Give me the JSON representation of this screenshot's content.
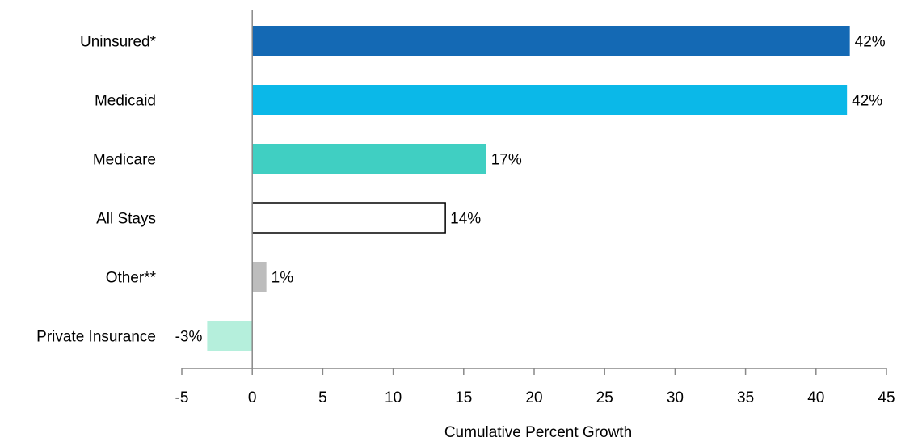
{
  "chart_data": {
    "type": "bar",
    "orientation": "horizontal",
    "categories": [
      "Uninsured*",
      "Medicaid",
      "Medicare",
      "All Stays",
      "Other**",
      "Private Insurance"
    ],
    "values": [
      42.4,
      42.2,
      16.6,
      13.7,
      1.0,
      -3.2
    ],
    "data_labels": [
      "42%",
      "42%",
      "17%",
      "14%",
      "1%",
      "-3%"
    ],
    "bar_colors": [
      "#1469B4",
      "#0BB8E8",
      "#40CFC2",
      "#FFFFFF",
      "#BDBDBD",
      "#B5EFDC"
    ],
    "bar_borders": [
      "none",
      "none",
      "none",
      "#000000",
      "none",
      "none"
    ],
    "xlabel": "Cumulative Percent Growth",
    "xlim": [
      -5,
      45
    ],
    "xticks": [
      -5,
      0,
      5,
      10,
      15,
      20,
      25,
      30,
      35,
      40,
      45
    ],
    "grid": false,
    "legend": "none"
  }
}
